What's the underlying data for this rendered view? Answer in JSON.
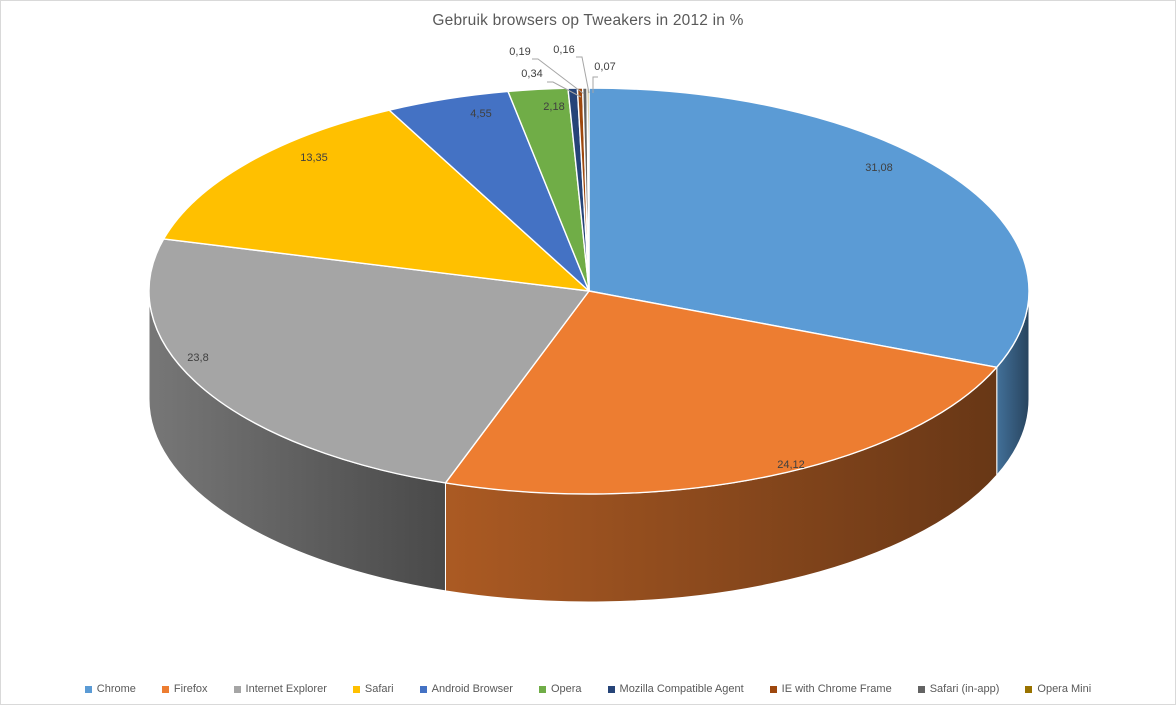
{
  "window": {
    "background": "#FFFFFF",
    "border_color": "#D9D9D9"
  },
  "chart_data": {
    "type": "pie",
    "effect": "3d",
    "title": "Gebruik browsers op Tweakers in 2012 in %",
    "legend_position": "bottom",
    "value_format": "comma-decimal-percent",
    "series": [
      {
        "name": "Chrome",
        "value": 31.08,
        "label": "31,08",
        "color": "#5B9BD5"
      },
      {
        "name": "Firefox",
        "value": 24.12,
        "label": "24,12",
        "color": "#ED7D31"
      },
      {
        "name": "Internet Explorer",
        "value": 23.8,
        "label": "23,8",
        "color": "#A5A5A5"
      },
      {
        "name": "Safari",
        "value": 13.35,
        "label": "13,35",
        "color": "#FFC000"
      },
      {
        "name": "Android Browser",
        "value": 4.55,
        "label": "4,55",
        "color": "#4472C4"
      },
      {
        "name": "Opera",
        "value": 2.18,
        "label": "2,18",
        "color": "#70AD47"
      },
      {
        "name": "Mozilla Compatible Agent",
        "value": 0.34,
        "label": "0,34",
        "color": "#264478"
      },
      {
        "name": "IE with Chrome Frame",
        "value": 0.19,
        "label": "0,19",
        "color": "#9E480E"
      },
      {
        "name": "Safari (in-app)",
        "value": 0.16,
        "label": "0,16",
        "color": "#636363"
      },
      {
        "name": "Opera Mini",
        "value": 0.07,
        "label": "0,07",
        "color": "#997300"
      }
    ],
    "text_colors": {
      "title": "#595959",
      "data_label": "#404040",
      "legend": "#595959",
      "leader_line": "#A6A6A6"
    }
  }
}
